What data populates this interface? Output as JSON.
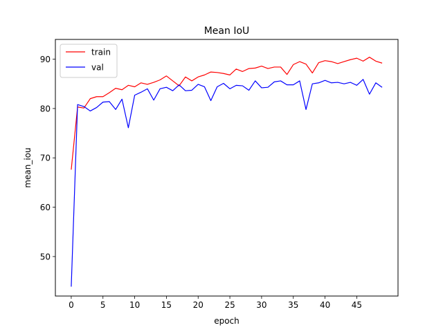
{
  "chart_data": {
    "type": "line",
    "title": "Mean IoU",
    "xlabel": "epoch",
    "ylabel": "mean_iou",
    "xlim": [
      -2.5,
      51.5
    ],
    "ylim": [
      42.0,
      94.0
    ],
    "xticks": [
      0,
      5,
      10,
      15,
      20,
      25,
      30,
      35,
      40,
      45
    ],
    "yticks": [
      50,
      60,
      70,
      80,
      90
    ],
    "grid": false,
    "legend_position": "top-left",
    "x": [
      0,
      1,
      2,
      3,
      4,
      5,
      6,
      7,
      8,
      9,
      10,
      11,
      12,
      13,
      14,
      15,
      16,
      17,
      18,
      19,
      20,
      21,
      22,
      23,
      24,
      25,
      26,
      27,
      28,
      29,
      30,
      31,
      32,
      33,
      34,
      35,
      36,
      37,
      38,
      39,
      40,
      41,
      42,
      43,
      44,
      45,
      46,
      47,
      48,
      49
    ],
    "series": [
      {
        "name": "train",
        "color": "#ff0000",
        "values": [
          67.6,
          80.3,
          80.1,
          82.0,
          82.4,
          82.4,
          83.2,
          84.1,
          83.8,
          84.7,
          84.4,
          85.2,
          84.9,
          85.3,
          85.8,
          86.6,
          85.6,
          84.6,
          86.4,
          85.6,
          86.4,
          86.8,
          87.4,
          87.3,
          87.1,
          86.8,
          88.0,
          87.5,
          88.1,
          88.2,
          88.6,
          88.1,
          88.4,
          88.4,
          86.9,
          88.9,
          89.5,
          89.0,
          87.2,
          89.3,
          89.7,
          89.5,
          89.1,
          89.5,
          89.9,
          90.2,
          89.6,
          90.4,
          89.6,
          89.2
        ]
      },
      {
        "name": "val",
        "color": "#0000ff",
        "values": [
          43.9,
          80.8,
          80.4,
          79.5,
          80.2,
          81.3,
          81.4,
          79.8,
          81.9,
          76.1,
          82.7,
          83.3,
          84.0,
          81.7,
          84.0,
          84.3,
          83.6,
          84.8,
          83.6,
          83.7,
          84.9,
          84.4,
          81.6,
          84.4,
          85.1,
          84.0,
          84.7,
          84.6,
          83.7,
          85.6,
          84.2,
          84.3,
          85.4,
          85.6,
          84.8,
          84.8,
          85.6,
          79.8,
          85.0,
          85.2,
          85.7,
          85.2,
          85.3,
          85.0,
          85.3,
          84.7,
          85.9,
          82.9,
          85.2,
          84.3
        ]
      }
    ]
  }
}
